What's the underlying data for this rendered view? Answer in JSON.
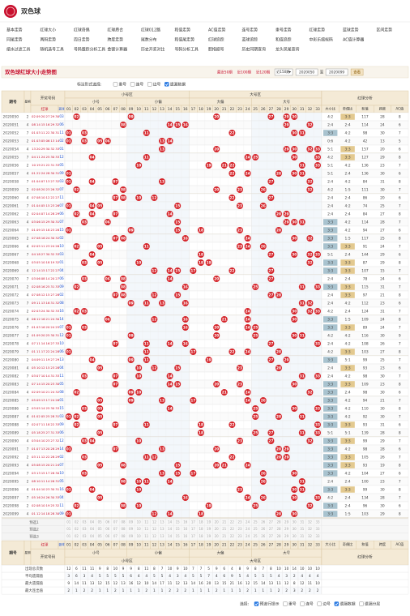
{
  "header": {
    "title": "双色球"
  },
  "nav": [
    [
      "基本走势",
      "红球大小",
      "红球奇偶",
      "红球质合",
      "红球012路",
      "和值走势",
      "AC值走势",
      "连号走势",
      "重号走势",
      "红球走势",
      "蓝球走势",
      "区间走势"
    ],
    [
      "同尾走势",
      "两码走势",
      "周日走势",
      "跨度走势",
      "尾数分布",
      "和值尾走势",
      "红球追踪",
      "蓝球追踪",
      "和值追踪",
      "中彩乐缩候码",
      "AC值计算器"
    ],
    [
      "缩水过滤工具",
      "随机选号工具",
      "号码跟踪分析工具",
      "金额计算器",
      "历史开奖对比",
      "号码分析工具",
      "胆拖缩号",
      "历史同期查询",
      "龙头凤尾查询"
    ]
  ],
  "page_title": "双色球红球大小走势图",
  "controls": {
    "ranges": [
      "最近50期",
      "近100期",
      "近120期"
    ],
    "select": "近150期",
    "from": "2020050",
    "to_label": "至",
    "to": "2020099",
    "button": "查看"
  },
  "options": {
    "label": "标注形式选择:",
    "items": [
      {
        "label": "重号",
        "checked": false
      },
      {
        "label": "连号",
        "checked": false
      },
      {
        "label": "边号",
        "checked": false
      },
      {
        "label": "遗漏数据",
        "checked": true
      }
    ]
  },
  "table": {
    "issue_header": "期号",
    "week_header": "星期",
    "draw_header": "开奖号码",
    "red_header": "红球",
    "blue_header": "蓝球",
    "zones": [
      "小号区",
      "大号区"
    ],
    "subzones": [
      "小号",
      "小偏",
      "大偏",
      "大号"
    ],
    "numbers": [
      "01",
      "02",
      "03",
      "04",
      "05",
      "06",
      "07",
      "08",
      "09",
      "10",
      "11",
      "12",
      "13",
      "14",
      "15",
      "16",
      "17",
      "18",
      "19",
      "20",
      "21",
      "22",
      "23",
      "24",
      "25",
      "26",
      "27",
      "28",
      "29",
      "30",
      "31",
      "32",
      "33"
    ],
    "analysis_header": "红球分析",
    "analysis_columns": [
      "大小比",
      "奇偶比",
      "和值",
      "跨度",
      "AC值"
    ],
    "rows": [
      {
        "issue": "2020050",
        "week": 2,
        "reds": [
          "02",
          "09",
          "20",
          "27",
          "29",
          "30"
        ],
        "blue": "03",
        "bs": "4:2",
        "oe": "3:3",
        "sum": 117,
        "span": 28,
        "ac": 8
      },
      {
        "issue": "2020051",
        "week": 4,
        "reds": [
          "08",
          "14",
          "15",
          "16",
          "29",
          "32"
        ],
        "blue": "06",
        "bs": "2:4",
        "oe": "2:4",
        "sum": 114,
        "span": 24,
        "ac": 6
      },
      {
        "issue": "2020052",
        "week": 7,
        "reds": [
          "01",
          "03",
          "11",
          "22",
          "30",
          "31"
        ],
        "blue": "11",
        "bs": "3:3",
        "oe": "4:2",
        "sum": 98,
        "span": 30,
        "ac": 7
      },
      {
        "issue": "2020053",
        "week": 2,
        "reds": [
          "01",
          "03",
          "05",
          "06",
          "13",
          "14"
        ],
        "blue": "02",
        "bs": "0:6",
        "oe": "4:2",
        "sum": 42,
        "span": 13,
        "ac": 5
      },
      {
        "issue": "2020054",
        "week": 4,
        "reds": [
          "13",
          "20",
          "29",
          "30",
          "32",
          "33"
        ],
        "blue": "01",
        "bs": "5:1",
        "oe": "3:3",
        "sum": 157,
        "span": 20,
        "ac": 6
      },
      {
        "issue": "2020055",
        "week": 7,
        "reds": [
          "04",
          "11",
          "24",
          "25",
          "30",
          "33"
        ],
        "blue": "12",
        "bs": "4:2",
        "oe": "3:3",
        "sum": 127,
        "span": 29,
        "ac": 8
      },
      {
        "issue": "2020056",
        "week": 2,
        "reds": [
          "10",
          "19",
          "21",
          "22",
          "31",
          "33"
        ],
        "blue": "05",
        "bs": "5:1",
        "oe": "4:2",
        "sum": 136,
        "span": 23,
        "ac": 7
      },
      {
        "issue": "2020057",
        "week": 4,
        "reds": [
          "01",
          "22",
          "24",
          "28",
          "30",
          "31"
        ],
        "blue": "09",
        "bs": "5:1",
        "oe": "2:4",
        "sum": 136,
        "span": 30,
        "ac": 6
      },
      {
        "issue": "2020058",
        "week": 7,
        "reds": [
          "01",
          "04",
          "07",
          "13",
          "27",
          "32"
        ],
        "blue": "03",
        "bs": "2:4",
        "oe": "4:2",
        "sum": 84,
        "span": 31,
        "ac": 8
      },
      {
        "issue": "2020059",
        "week": 2,
        "reds": [
          "02",
          "08",
          "20",
          "23",
          "26",
          "32"
        ],
        "blue": "07",
        "bs": "4:2",
        "oe": "1:5",
        "sum": 111,
        "span": 30,
        "ac": 7
      },
      {
        "issue": "2020060",
        "week": 4,
        "reds": [
          "07",
          "08",
          "10",
          "12",
          "22",
          "27"
        ],
        "blue": "11",
        "bs": "2:4",
        "oe": "2:4",
        "sum": 86,
        "span": 20,
        "ac": 6
      },
      {
        "issue": "2020061",
        "week": 7,
        "reds": [
          "01",
          "04",
          "05",
          "15",
          "23",
          "26"
        ],
        "blue": "07",
        "bs": "2:4",
        "oe": "4:2",
        "sum": 74,
        "span": 25,
        "ac": 7
      },
      {
        "issue": "2020062",
        "week": 2,
        "reds": [
          "02",
          "04",
          "07",
          "14",
          "28",
          "29"
        ],
        "blue": "06",
        "bs": "2:4",
        "oe": "2:4",
        "sum": 84,
        "span": 27,
        "ac": 8
      },
      {
        "issue": "2020063",
        "week": 4,
        "reds": [
          "03",
          "06",
          "15",
          "29",
          "30",
          "31"
        ],
        "blue": "07",
        "bs": "3:3",
        "oe": "4:2",
        "sum": 114,
        "span": 28,
        "ac": 7
      },
      {
        "issue": "2020064",
        "week": 7,
        "reds": [
          "01",
          "09",
          "15",
          "18",
          "23",
          "28"
        ],
        "blue": "15",
        "bs": "3:3",
        "oe": "4:2",
        "sum": 94,
        "span": 27,
        "ac": 6
      },
      {
        "issue": "2020065",
        "week": 2,
        "reds": [
          "07",
          "08",
          "16",
          "24",
          "30",
          "32"
        ],
        "blue": "02",
        "bs": "3:3",
        "oe": "1:5",
        "sum": 117,
        "span": 25,
        "ac": 8
      },
      {
        "issue": "2020066",
        "week": 4,
        "reds": [
          "02",
          "05",
          "11",
          "23",
          "24",
          "26"
        ],
        "blue": "10",
        "bs": "3:3",
        "oe": "3:3",
        "sum": 91,
        "span": 24,
        "ac": 7
      },
      {
        "issue": "2020067",
        "week": 7,
        "reds": [
          "04",
          "18",
          "27",
          "30",
          "32",
          "33"
        ],
        "blue": "03",
        "bs": "5:1",
        "oe": "2:4",
        "sum": 144,
        "span": 29,
        "ac": 6
      },
      {
        "issue": "2020068",
        "week": 2,
        "reds": [
          "03",
          "05",
          "10",
          "18",
          "19",
          "32"
        ],
        "blue": "01",
        "bs": "3:3",
        "oe": "3:3",
        "sum": 87,
        "span": 29,
        "ac": 8
      },
      {
        "issue": "2020069",
        "week": 4,
        "reds": [
          "12",
          "14",
          "15",
          "17",
          "22",
          "27"
        ],
        "blue": "04",
        "bs": "3:3",
        "oe": "3:3",
        "sum": 107,
        "span": 15,
        "ac": 7
      },
      {
        "issue": "2020070",
        "week": 7,
        "reds": [
          "03",
          "06",
          "08",
          "14",
          "20",
          "27"
        ],
        "blue": "06",
        "bs": "2:4",
        "oe": "2:4",
        "sum": 78,
        "span": 24,
        "ac": 6
      },
      {
        "issue": "2020071",
        "week": 2,
        "reds": [
          "02",
          "08",
          "16",
          "25",
          "31",
          "33"
        ],
        "blue": "09",
        "bs": "3:3",
        "oe": "3:3",
        "sum": 115,
        "span": 31,
        "ac": 7
      },
      {
        "issue": "2020072",
        "week": 4,
        "reds": [
          "07",
          "08",
          "12",
          "15",
          "27",
          "28"
        ],
        "blue": "02",
        "bs": "2:4",
        "oe": "3:3",
        "sum": 97,
        "span": 21,
        "ac": 8
      },
      {
        "issue": "2020073",
        "week": 7,
        "reds": [
          "09",
          "11",
          "13",
          "16",
          "31",
          "32"
        ],
        "blue": "08",
        "bs": "2:4",
        "oe": "4:2",
        "sum": 112,
        "span": 23,
        "ac": 6
      },
      {
        "issue": "2020074",
        "week": 2,
        "reds": [
          "02",
          "03",
          "24",
          "30",
          "32",
          "33"
        ],
        "blue": "16",
        "bs": "4:2",
        "oe": "2:4",
        "sum": 124,
        "span": 31,
        "ac": 7
      },
      {
        "issue": "2020075",
        "week": 4,
        "reds": [
          "06",
          "12",
          "16",
          "21",
          "24",
          "30"
        ],
        "blue": "14",
        "bs": "3:3",
        "oe": "1:5",
        "sum": 109,
        "span": 24,
        "ac": 8
      },
      {
        "issue": "2020076",
        "week": 7,
        "reds": [
          "01",
          "03",
          "16",
          "20",
          "24",
          "25"
        ],
        "blue": "07",
        "bs": "3:3",
        "oe": "3:3",
        "sum": 89,
        "span": 24,
        "ac": 7
      },
      {
        "issue": "2020077",
        "week": 2,
        "reds": [
          "01",
          "09",
          "20",
          "25",
          "30",
          "31"
        ],
        "blue": "12",
        "bs": "4:2",
        "oe": "4:2",
        "sum": 116,
        "span": 30,
        "ac": 9
      },
      {
        "issue": "2020078",
        "week": 4,
        "reds": [
          "07",
          "11",
          "14",
          "16",
          "27",
          "33"
        ],
        "blue": "10",
        "bs": "2:4",
        "oe": "4:2",
        "sum": 108,
        "span": 26,
        "ac": 7
      },
      {
        "issue": "2020079",
        "week": 7,
        "reds": [
          "01",
          "11",
          "17",
          "22",
          "24",
          "28"
        ],
        "blue": "06",
        "bs": "4:2",
        "oe": "3:3",
        "sum": 103,
        "span": 27,
        "ac": 8
      },
      {
        "issue": "2020080",
        "week": 2,
        "reds": [
          "04",
          "09",
          "11",
          "19",
          "27",
          "29"
        ],
        "blue": "13",
        "bs": "3:3",
        "oe": "5:1",
        "sum": 99,
        "span": 25,
        "ac": 7
      },
      {
        "issue": "2020081",
        "week": 4,
        "reds": [
          "05",
          "10",
          "12",
          "15",
          "23",
          "28"
        ],
        "blue": "04",
        "bs": "2:4",
        "oe": "3:3",
        "sum": 93,
        "span": 23,
        "ac": 6
      },
      {
        "issue": "2020082",
        "week": 7,
        "reds": [
          "03",
          "07",
          "10",
          "14",
          "31",
          "33"
        ],
        "blue": "11",
        "bs": "2:4",
        "oe": "4:2",
        "sum": 98,
        "span": 30,
        "ac": 7
      },
      {
        "issue": "2020083",
        "week": 2,
        "reds": [
          "07",
          "14",
          "15",
          "20",
          "23",
          "30"
        ],
        "blue": "05",
        "bs": "3:3",
        "oe": "3:3",
        "sum": 109,
        "span": 23,
        "ac": 8
      },
      {
        "issue": "2020084",
        "week": 4,
        "reds": [
          "02",
          "09",
          "10",
          "21",
          "24",
          "32"
        ],
        "blue": "08",
        "bs": "3:3",
        "oe": "2:4",
        "sum": 98,
        "span": 30,
        "ac": 6
      },
      {
        "issue": "2020085",
        "week": 7,
        "reds": [
          "05",
          "09",
          "13",
          "17",
          "24",
          "26"
        ],
        "blue": "01",
        "bs": "3:3",
        "oe": "4:2",
        "sum": 94,
        "span": 21,
        "ac": 7
      },
      {
        "issue": "2020086",
        "week": 2,
        "reds": [
          "03",
          "05",
          "14",
          "25",
          "30",
          "33"
        ],
        "blue": "15",
        "bs": "3:3",
        "oe": "4:2",
        "sum": 110,
        "span": 30,
        "ac": 8
      },
      {
        "issue": "2020087",
        "week": 4,
        "reds": [
          "01",
          "02",
          "05",
          "25",
          "28",
          "31"
        ],
        "blue": "03",
        "bs": "3:3",
        "oe": "4:2",
        "sum": 92,
        "span": 30,
        "ac": 7
      },
      {
        "issue": "2020088",
        "week": 7,
        "reds": [
          "02",
          "07",
          "11",
          "18",
          "22",
          "33"
        ],
        "blue": "09",
        "bs": "3:3",
        "oe": "3:3",
        "sum": 93,
        "span": 31,
        "ac": 6
      },
      {
        "issue": "2020089",
        "week": 2,
        "reds": [
          "05",
          "18",
          "25",
          "27",
          "31",
          "33"
        ],
        "blue": "06",
        "bs": "5:1",
        "oe": "5:1",
        "sum": 139,
        "span": 28,
        "ac": 8
      },
      {
        "issue": "2020090",
        "week": 4,
        "reds": [
          "03",
          "04",
          "10",
          "23",
          "27",
          "32"
        ],
        "blue": "12",
        "bs": "3:3",
        "oe": "3:3",
        "sum": 99,
        "span": 29,
        "ac": 7
      },
      {
        "issue": "2020091",
        "week": 7,
        "reds": [
          "01",
          "07",
          "13",
          "20",
          "28",
          "29"
        ],
        "blue": "14",
        "bs": "3:3",
        "oe": "4:2",
        "sum": 98,
        "span": 28,
        "ac": 6
      },
      {
        "issue": "2020092",
        "week": 2,
        "reds": [
          "03",
          "11",
          "12",
          "22",
          "28",
          "29"
        ],
        "blue": "02",
        "bs": "3:3",
        "oe": "3:3",
        "sum": 105,
        "span": 26,
        "ac": 7
      },
      {
        "issue": "2020093",
        "week": 4,
        "reds": [
          "05",
          "08",
          "15",
          "20",
          "21",
          "24"
        ],
        "blue": "07",
        "bs": "3:3",
        "oe": "3:3",
        "sum": 93,
        "span": 19,
        "ac": 8
      },
      {
        "issue": "2020094",
        "week": 7,
        "reds": [
          "03",
          "13",
          "15",
          "17",
          "26",
          "30"
        ],
        "blue": "10",
        "bs": "3:3",
        "oe": "4:2",
        "sum": 104,
        "span": 27,
        "ac": 6
      },
      {
        "issue": "2020095",
        "week": 2,
        "reds": [
          "08",
          "10",
          "11",
          "14",
          "26",
          "31"
        ],
        "blue": "05",
        "bs": "2:4",
        "oe": "2:4",
        "sum": 100,
        "span": 23,
        "ac": 7
      },
      {
        "issue": "2020096",
        "week": 4,
        "reds": [
          "01",
          "04",
          "10",
          "23",
          "30",
          "31"
        ],
        "blue": "16",
        "bs": "3:3",
        "oe": "3:3",
        "sum": 99,
        "span": 30,
        "ac": 8
      },
      {
        "issue": "2020097",
        "week": 7,
        "reds": [
          "05",
          "16",
          "24",
          "26",
          "30",
          "33"
        ],
        "blue": "04",
        "bs": "4:2",
        "oe": "2:4",
        "sum": 134,
        "span": 28,
        "ac": 7
      },
      {
        "issue": "2020098",
        "week": 2,
        "reds": [
          "02",
          "08",
          "10",
          "19",
          "25",
          "32"
        ],
        "blue": "11",
        "bs": "3:3",
        "oe": "2:4",
        "sum": 96,
        "span": 30,
        "ac": 6
      },
      {
        "issue": "2020099",
        "week": 4,
        "reds": [
          "01",
          "12",
          "14",
          "18",
          "28",
          "30"
        ],
        "blue": "09",
        "bs": "3:3",
        "oe": "1:5",
        "sum": 103,
        "span": 29,
        "ac": 8
      }
    ],
    "preselect": [
      "预选1",
      "预选2",
      "预选3"
    ],
    "stats": [
      {
        "label": "出现总次数",
        "values": [
          12,
          6,
          11,
          11,
          9,
          8,
          10,
          9,
          9,
          8,
          11,
          8,
          7,
          10,
          9,
          10,
          7,
          7,
          5,
          9,
          6,
          4,
          8,
          9,
          8,
          7,
          8,
          10,
          10,
          14,
          10,
          10,
          10
        ]
      },
      {
        "label": "平均遗漏值",
        "values": [
          3,
          6,
          3,
          4,
          5,
          5,
          5,
          5,
          6,
          4,
          4,
          5,
          5,
          4,
          3,
          4,
          5,
          5,
          7,
          4,
          6,
          9,
          5,
          4,
          5,
          5,
          5,
          4,
          3,
          2,
          4,
          4,
          4
        ]
      },
      {
        "label": "最大遗漏值",
        "values": [
          9,
          14,
          11,
          13,
          12,
          15,
          12,
          13,
          16,
          12,
          10,
          14,
          17,
          11,
          12,
          13,
          14,
          16,
          20,
          13,
          15,
          21,
          16,
          12,
          15,
          14,
          13,
          11,
          12,
          8,
          12,
          11,
          10
        ]
      },
      {
        "label": "最大连出值",
        "values": [
          2,
          1,
          2,
          2,
          1,
          1,
          2,
          1,
          1,
          1,
          2,
          1,
          1,
          2,
          2,
          2,
          1,
          1,
          1,
          2,
          1,
          1,
          1,
          2,
          1,
          1,
          1,
          2,
          2,
          3,
          2,
          2,
          2
        ]
      }
    ]
  },
  "footer_options": {
    "label": "选择:",
    "items": [
      {
        "label": "预选行提示",
        "checked": true
      },
      {
        "label": "重号",
        "checked": false
      },
      {
        "label": "连号",
        "checked": false
      },
      {
        "label": "边号",
        "checked": false
      },
      {
        "label": "遗漏数据",
        "checked": true
      },
      {
        "label": "遗漏分层",
        "checked": false
      }
    ]
  }
}
